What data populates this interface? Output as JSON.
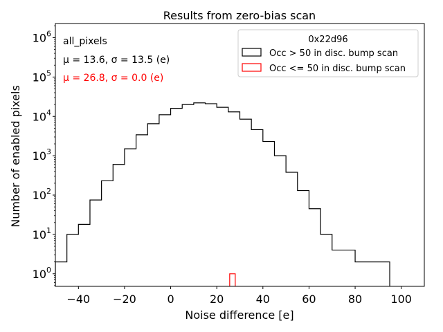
{
  "chart_data": {
    "type": "histogram",
    "title": "Results from zero-bias scan",
    "xlabel": "Noise difference [e]",
    "ylabel": "Number of enabled pixels",
    "xlim": [
      -50,
      110
    ],
    "ylim_log10": [
      -0.32,
      6.36
    ],
    "yscale": "log",
    "x_ticks": [
      -40,
      -20,
      0,
      20,
      40,
      60,
      80,
      100
    ],
    "x_tick_labels": [
      "−40",
      "−20",
      "0",
      "20",
      "40",
      "60",
      "80",
      "100"
    ],
    "y_tick_exponents": [
      0,
      1,
      2,
      3,
      4,
      5,
      6
    ],
    "y_tick_base": "10",
    "legend": {
      "title": "0x22d96",
      "position": "top-right",
      "entries": [
        {
          "label": "Occ > 50 in disc. bump scan",
          "color": "#000000"
        },
        {
          "label": "Occ <= 50 in disc. bump scan",
          "color": "#ff0000"
        }
      ]
    },
    "annotations": [
      {
        "id": "pixels",
        "text": "all_pixels",
        "color": "#000000"
      },
      {
        "id": "stats_black",
        "text": "μ = 13.6, σ = 13.5 (e)",
        "color": "#000000"
      },
      {
        "id": "stats_red",
        "text": "μ = 26.8, σ = 0.0 (e)",
        "color": "#ff0000"
      }
    ],
    "series": [
      {
        "name": "Occ > 50 in disc. bump scan",
        "color": "#000000",
        "edges": [
          -50,
          -45,
          -40,
          -35,
          -30,
          -25,
          -20,
          -15,
          -10,
          -5,
          0,
          5,
          10,
          15,
          20,
          25,
          30,
          35,
          40,
          45,
          50,
          55,
          60,
          65,
          70,
          75,
          80,
          85,
          90,
          95
        ],
        "counts": [
          2,
          10,
          18,
          75,
          230,
          600,
          1500,
          3400,
          6500,
          11000,
          16000,
          20000,
          22000,
          21000,
          17000,
          13000,
          8500,
          4600,
          2300,
          1000,
          380,
          130,
          45,
          10,
          4,
          4,
          2,
          2,
          2
        ]
      },
      {
        "name": "Occ <= 50 in disc. bump scan",
        "color": "#ff0000",
        "edges": [
          25.6,
          28.0
        ],
        "counts": [
          1
        ]
      }
    ]
  }
}
